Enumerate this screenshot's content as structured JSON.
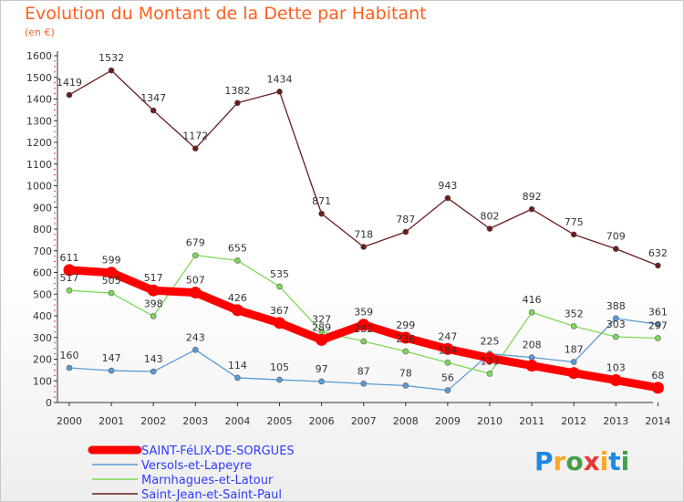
{
  "chart_data": {
    "type": "line",
    "title": "Evolution du Montant de la Dette par Habitant",
    "subtitle": "(en €)",
    "xlabel": "",
    "ylabel": "",
    "x": [
      "2000",
      "2001",
      "2002",
      "2003",
      "2004",
      "2005",
      "2006",
      "2007",
      "2008",
      "2009",
      "2010",
      "2011",
      "2012",
      "2013",
      "2014"
    ],
    "ylim": [
      0,
      1600
    ],
    "yticks": [
      0,
      100,
      200,
      300,
      400,
      500,
      600,
      700,
      800,
      900,
      1000,
      1100,
      1200,
      1300,
      1400,
      1500,
      1600
    ],
    "grid": false,
    "legend_position": "bottom-left",
    "series": [
      {
        "name": "SAINT-FéLIX-DE-SORGUES",
        "color": "#ff0000",
        "values": [
          611,
          599,
          517,
          507,
          426,
          367,
          289,
          359,
          299,
          247,
          205,
          170,
          136,
          103,
          68
        ],
        "labels": [
          "611",
          "599",
          "517",
          "507",
          "426",
          "367",
          "289",
          "359",
          "299",
          "247",
          "",
          "",
          "",
          "103",
          "68"
        ]
      },
      {
        "name": "Versols-et-Lapeyre",
        "color": "#5b9bd5",
        "values": [
          160,
          147,
          143,
          243,
          114,
          105,
          97,
          87,
          78,
          56,
          225,
          208,
          187,
          388,
          361
        ],
        "labels": [
          "160",
          "147",
          "143",
          "243",
          "114",
          "105",
          "97",
          "87",
          "78",
          "56",
          "225",
          "208",
          "187",
          "388",
          "361"
        ]
      },
      {
        "name": "Marnhagues-et-Latour",
        "color": "#7ed957",
        "values": [
          517,
          505,
          398,
          679,
          655,
          535,
          327,
          282,
          236,
          184,
          133,
          416,
          352,
          303,
          297
        ],
        "labels": [
          "517",
          "505",
          "398",
          "679",
          "655",
          "535",
          "327",
          "282",
          "236",
          "184",
          "133",
          "416",
          "352",
          "303",
          "297"
        ]
      },
      {
        "name": "Saint-Jean-et-Saint-Paul",
        "color": "#6b1d1d",
        "values": [
          1419,
          1532,
          1347,
          1172,
          1382,
          1434,
          871,
          718,
          787,
          943,
          802,
          892,
          775,
          709,
          632
        ],
        "labels": [
          "1419",
          "1532",
          "1347",
          "1172",
          "1382",
          "1434",
          "871",
          "718",
          "787",
          "943",
          "802",
          "892",
          "775",
          "709",
          "632"
        ]
      }
    ]
  },
  "brand": {
    "text": "Proxiti",
    "colors": [
      "#1e88e5",
      "#f9a825",
      "#43a047",
      "#e53935",
      "#f9a825",
      "#1e88e5",
      "#43a047"
    ]
  }
}
